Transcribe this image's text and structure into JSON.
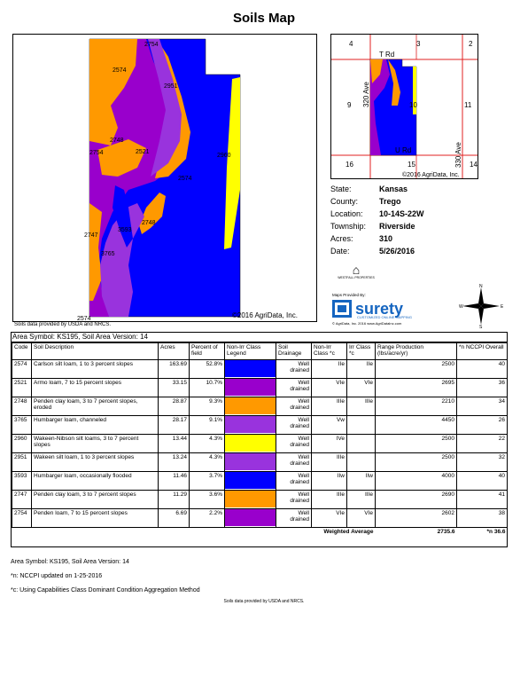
{
  "title": "Soils Map",
  "map": {
    "unit_labels": [
      "2754",
      "2574",
      "2951",
      "2748",
      "2754",
      "2521",
      "2960",
      "2574",
      "2748",
      "3593",
      "2747",
      "3765",
      "2574"
    ],
    "copyright": "©2016 AgriData, Inc.",
    "source": "Soils data provided by USDA and NRCS."
  },
  "locator": {
    "section_labels": [
      "4",
      "3",
      "2",
      "9",
      "10",
      "11",
      "16",
      "15",
      "14"
    ],
    "road_labels": [
      "T Rd",
      "320 Ave",
      "U Rd",
      "330 Ave"
    ],
    "copyright": "©2016 AgriData, Inc."
  },
  "info": [
    {
      "key": "State:",
      "value": "Kansas"
    },
    {
      "key": "County:",
      "value": "Trego"
    },
    {
      "key": "Location:",
      "value": "10-14S-22W"
    },
    {
      "key": "Township:",
      "value": "Riverside"
    },
    {
      "key": "Acres:",
      "value": "310"
    },
    {
      "key": "Date:",
      "value": "5/26/2016"
    }
  ],
  "branding": {
    "westfall_logo_text": "WESTFALL PROPERTIES",
    "maps_provided_by": "Maps Provided By:",
    "surety_name": "surety",
    "surety_tagline": "CUSTOMIZED ONLINE MAPPING",
    "surety_footer": "© AgriData, Inc. 2016          www.AgriDataInc.com",
    "compass": [
      "N",
      "E",
      "S",
      "W"
    ]
  },
  "table": {
    "area_header": "Area Symbol: KS195, Soil Area Version: 14",
    "columns": [
      "Code",
      "Soil Description",
      "Acres",
      "Percent of field",
      "Non-Irr Class Legend",
      "Soil Drainage",
      "Non-Irr Class *c",
      "Irr Class *c",
      "Range Production (lbs/acre/yr)",
      "*n NCCPI Overall"
    ],
    "rows": [
      {
        "code": "2574",
        "desc": "Carlson silt loam, 1 to 3 percent slopes",
        "acres": "163.69",
        "pct": "52.8%",
        "color": "#0000ff",
        "drain": "Well drained",
        "nonirr": "IIe",
        "irr": "IIe",
        "range": "2500",
        "nccpi": "40"
      },
      {
        "code": "2521",
        "desc": "Armo loam, 7 to 15 percent slopes",
        "acres": "33.15",
        "pct": "10.7%",
        "color": "#9900cc",
        "drain": "Well drained",
        "nonirr": "VIe",
        "irr": "VIe",
        "range": "2695",
        "nccpi": "36"
      },
      {
        "code": "2748",
        "desc": "Penden clay loam, 3 to 7 percent slopes, eroded",
        "acres": "28.87",
        "pct": "9.3%",
        "color": "#ff9900",
        "drain": "Well drained",
        "nonirr": "IIIe",
        "irr": "IIIe",
        "range": "2210",
        "nccpi": "34"
      },
      {
        "code": "3765",
        "desc": "Humbarger loam, channeled",
        "acres": "28.17",
        "pct": "9.1%",
        "color": "#9933dd",
        "drain": "Well drained",
        "nonirr": "Vw",
        "irr": "",
        "range": "4450",
        "nccpi": "26"
      },
      {
        "code": "2960",
        "desc": "Wakeen-Nibson silt loams, 3 to 7 percent slopes",
        "acres": "13.44",
        "pct": "4.3%",
        "color": "#ffff00",
        "drain": "Well drained",
        "nonirr": "IVe",
        "irr": "",
        "range": "2500",
        "nccpi": "22"
      },
      {
        "code": "2951",
        "desc": "Wakeen silt loam, 1 to 3 percent slopes",
        "acres": "13.24",
        "pct": "4.3%",
        "color": "#9933dd",
        "drain": "Well drained",
        "nonirr": "IIIe",
        "irr": "",
        "range": "2500",
        "nccpi": "32"
      },
      {
        "code": "3593",
        "desc": "Humbarger loam, occasionally flooded",
        "acres": "11.46",
        "pct": "3.7%",
        "color": "#0000ff",
        "drain": "Well drained",
        "nonirr": "IIw",
        "irr": "IIw",
        "range": "4000",
        "nccpi": "40"
      },
      {
        "code": "2747",
        "desc": "Penden clay loam, 3 to 7 percent slopes",
        "acres": "11.29",
        "pct": "3.6%",
        "color": "#ff9900",
        "drain": "Well drained",
        "nonirr": "IIIe",
        "irr": "IIIe",
        "range": "2690",
        "nccpi": "41"
      },
      {
        "code": "2754",
        "desc": "Penden loam, 7 to 15 percent slopes",
        "acres": "6.69",
        "pct": "2.2%",
        "color": "#9900cc",
        "drain": "Well drained",
        "nonirr": "VIe",
        "irr": "VIe",
        "range": "2602",
        "nccpi": "38"
      }
    ],
    "weighted_label": "Weighted Average",
    "weighted_range": "2735.6",
    "weighted_nccpi": "*n 36.6"
  },
  "notes": {
    "area": "Area Symbol: KS195, Soil Area Version: 14",
    "n": "*n: NCCPI updated on 1-25-2016",
    "c": "*c: Using Capabilities Class Dominant Condition Aggregation Method",
    "bottom_source": "Soils data provided by USDA and NRCS."
  }
}
